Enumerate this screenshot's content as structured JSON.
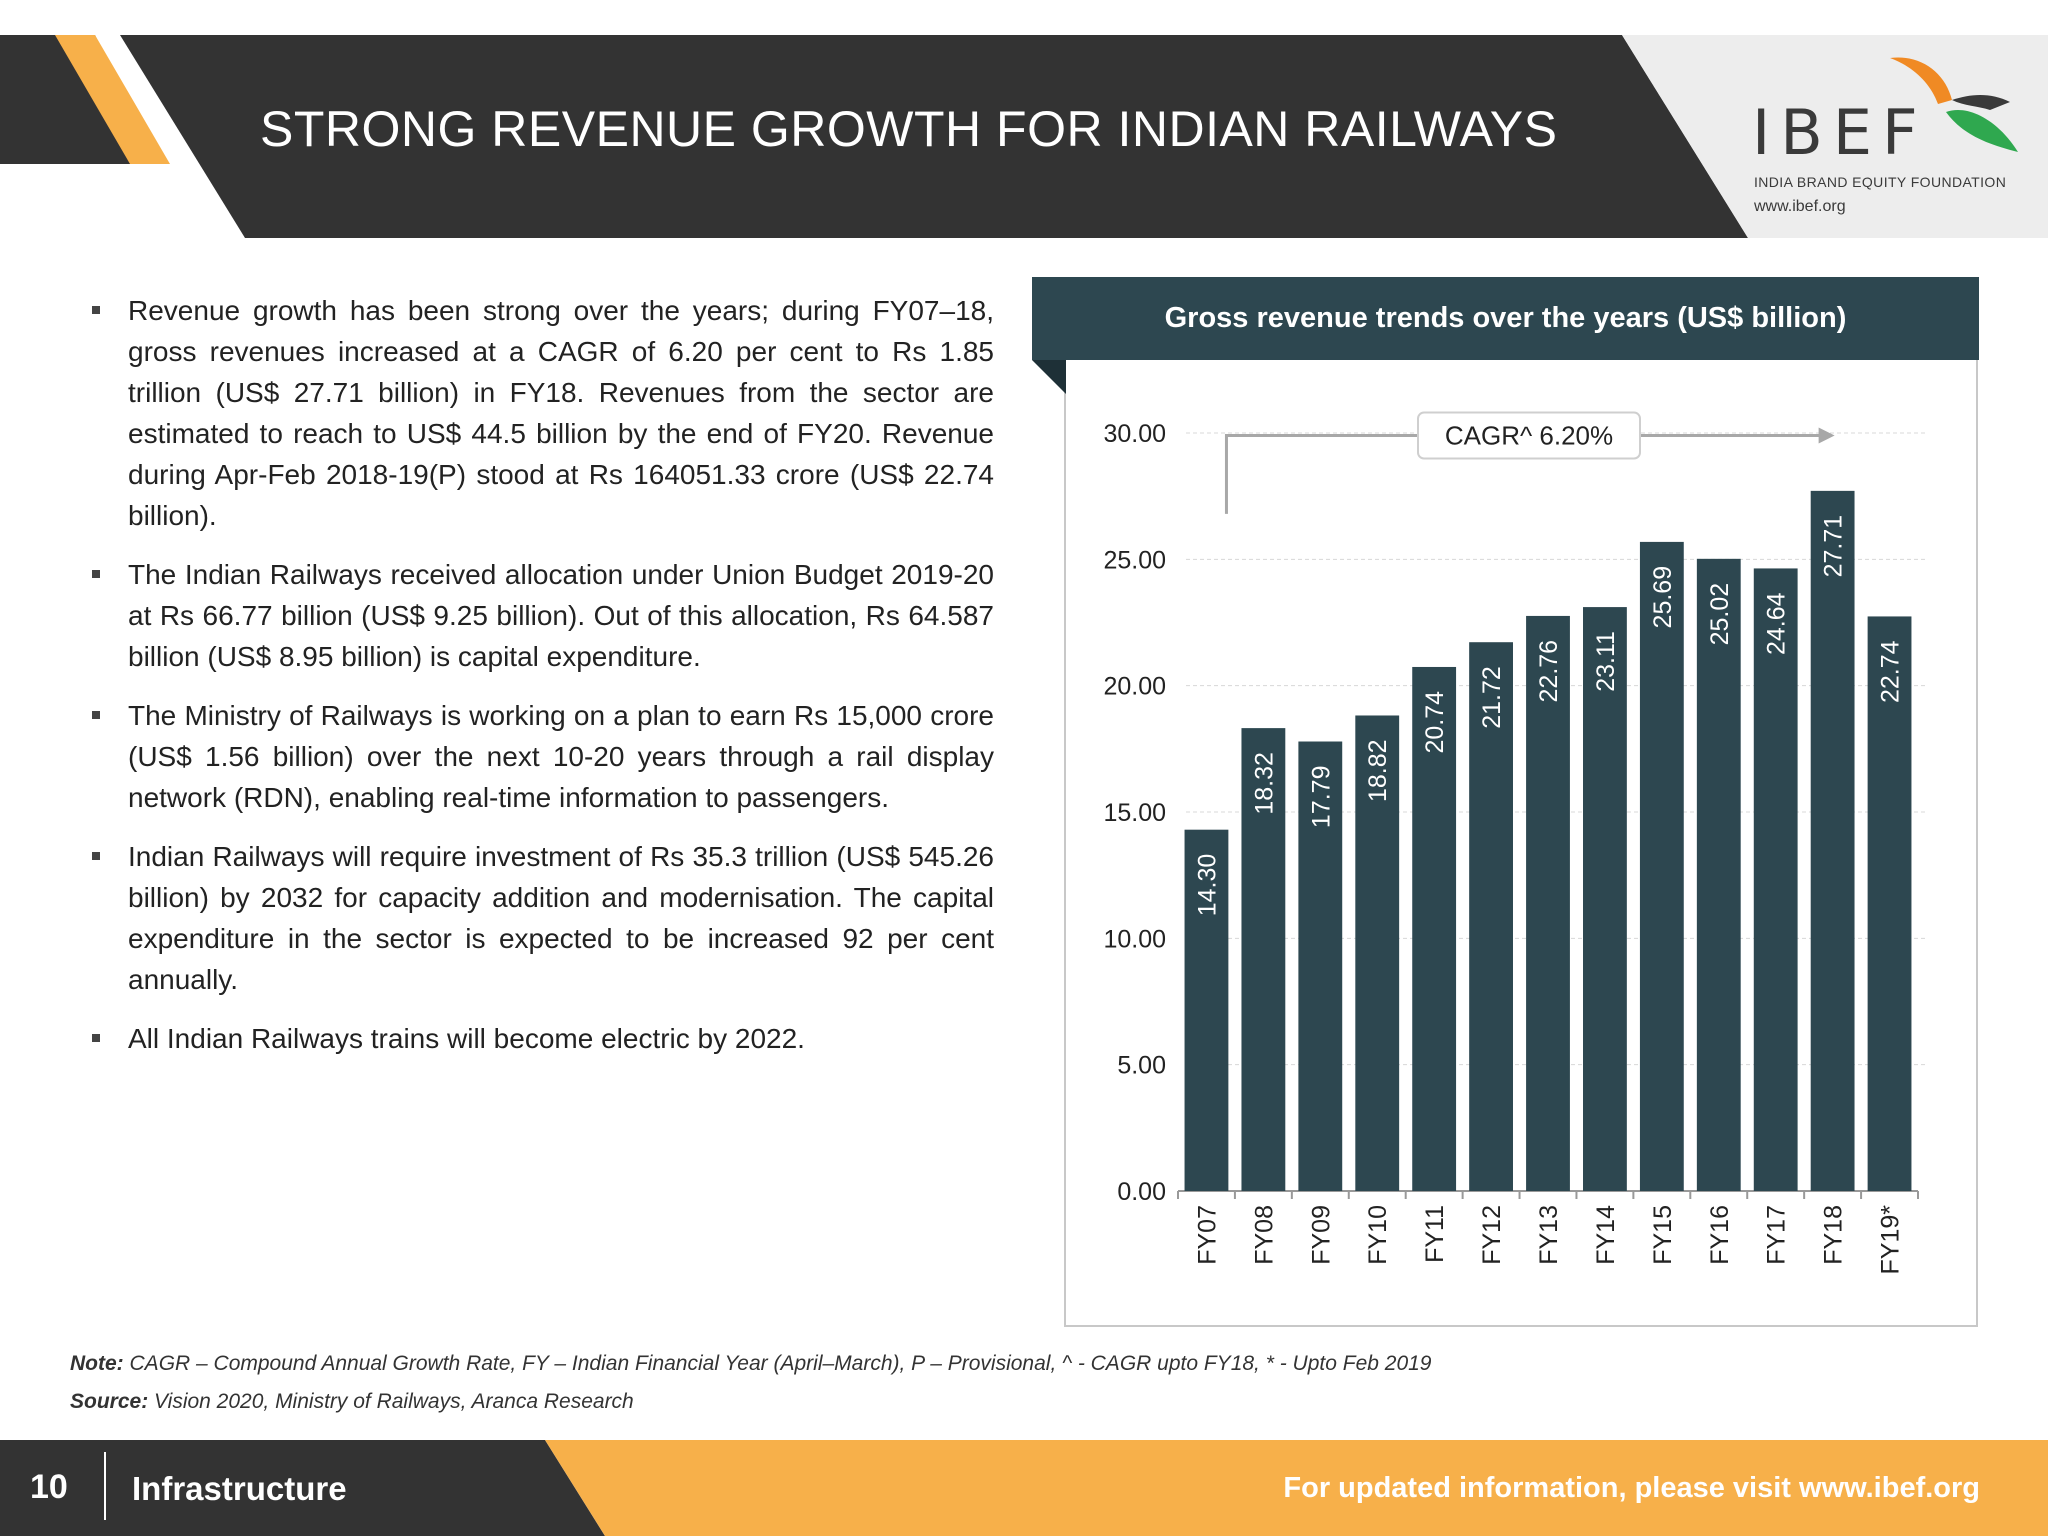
{
  "header": {
    "title": "STRONG REVENUE GROWTH FOR INDIAN RAILWAYS",
    "logo_text": "IBEF",
    "logo_subtitle": "INDIA BRAND EQUITY FOUNDATION",
    "logo_url": "www.ibef.org"
  },
  "bullets": [
    "Revenue growth has been strong over the years; during FY07–18, gross revenues increased at a CAGR of 6.20 per cent to Rs 1.85 trillion (US$ 27.71 billion) in FY18. Revenues from the sector are estimated to reach to US$ 44.5 billion by the end of FY20. Revenue during Apr-Feb 2018-19(P) stood at Rs 164051.33 crore (US$ 22.74 billion).",
    "The Indian Railways received allocation under Union Budget 2019-20 at Rs 66.77 billion (US$ 9.25 billion). Out of this allocation, Rs 64.587 billion (US$ 8.95 billion) is capital expenditure.",
    "The Ministry of Railways is working on a plan to earn Rs 15,000 crore (US$ 1.56 billion) over the next 10-20 years through a rail display network (RDN), enabling real-time information to passengers.",
    "Indian Railways will require investment of Rs 35.3 trillion (US$ 545.26 billion) by 2032 for capacity addition and modernisation. The capital expenditure in the sector is expected to be increased 92 per cent annually.",
    "All Indian Railways trains will become electric by 2022."
  ],
  "chart_data": {
    "type": "bar",
    "title": "Gross revenue trends over the years (US$ billion)",
    "categories": [
      "FY07",
      "FY08",
      "FY09",
      "FY10",
      "FY11",
      "FY12",
      "FY13",
      "FY14",
      "FY15",
      "FY16",
      "FY17",
      "FY18",
      "FY19*"
    ],
    "values": [
      14.3,
      18.32,
      17.79,
      18.82,
      20.74,
      21.72,
      22.76,
      23.11,
      25.69,
      25.02,
      24.64,
      27.71,
      22.74
    ],
    "data_labels": [
      "14.30",
      "18.32",
      "17.79",
      "18.82",
      "20.74",
      "21.72",
      "22.76",
      "23.11",
      "25.69",
      "25.02",
      "24.64",
      "27.71",
      "22.74"
    ],
    "yticks": [
      "0.00",
      "5.00",
      "10.00",
      "15.00",
      "20.00",
      "25.00",
      "30.00"
    ],
    "ylim": [
      0,
      30
    ],
    "annotation": "CAGR^ 6.20%",
    "bar_color": "#2d4750",
    "grid": true
  },
  "note": {
    "label": "Note:",
    "text": "CAGR – Compound Annual Growth Rate, FY – Indian Financial Year (April–March), P – Provisional, ^ - CAGR upto FY18, * - Upto Feb 2019"
  },
  "source": {
    "label": "Source:",
    "text": "Vision 2020, Ministry of Railways, Aranca Research"
  },
  "footer": {
    "page_number": "10",
    "section": "Infrastructure",
    "link_text": "For updated information, please visit www.ibef.org"
  },
  "colors": {
    "dark": "#333333",
    "accent": "#f7b04a",
    "chart_header": "#2d4750"
  }
}
